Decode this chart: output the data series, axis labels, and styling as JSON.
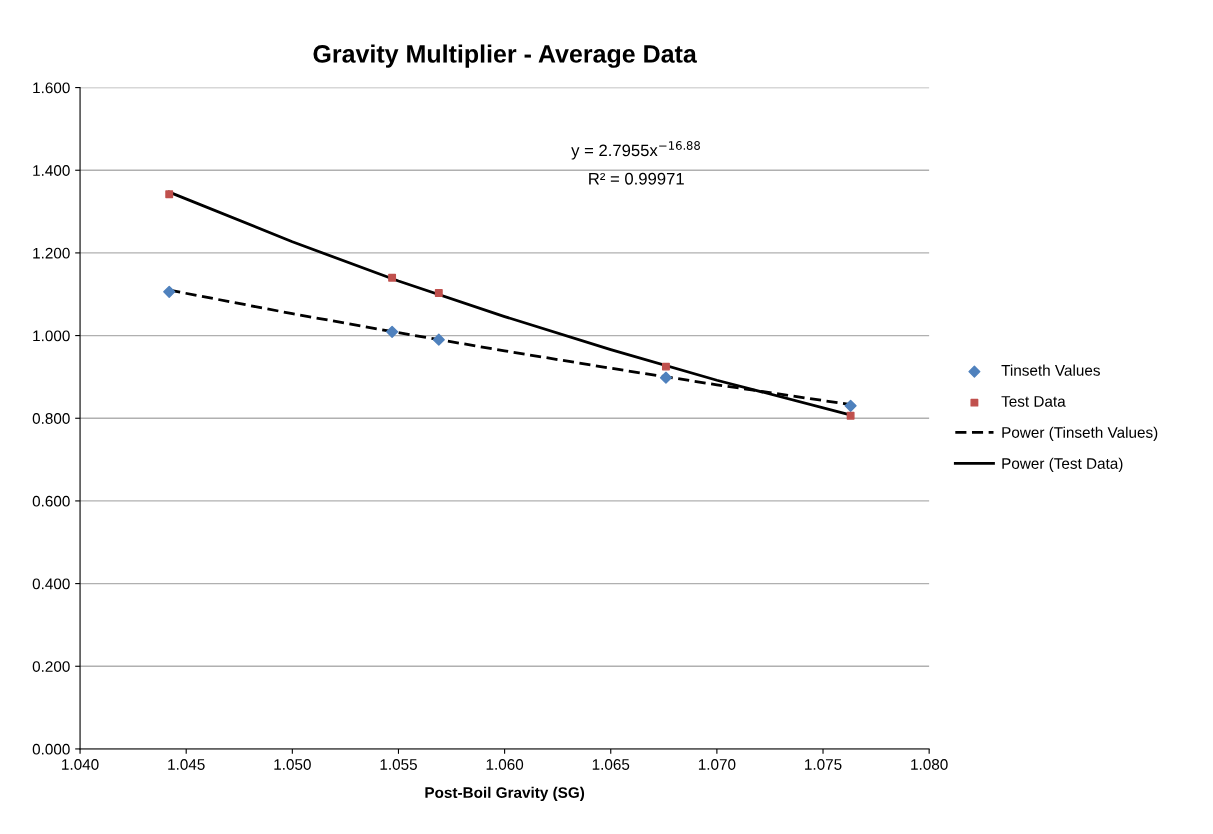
{
  "chart_data": {
    "type": "scatter",
    "title": "Gravity Multiplier - Average Data",
    "xlabel": "Post-Boil Gravity (SG)",
    "xlim": [
      1.04,
      1.08
    ],
    "xticks": [
      {
        "value": 1.04,
        "label": "1.040"
      },
      {
        "value": 1.045,
        "label": "1.045"
      },
      {
        "value": 1.05,
        "label": "1.050"
      },
      {
        "value": 1.055,
        "label": "1.055"
      },
      {
        "value": 1.06,
        "label": "1.060"
      },
      {
        "value": 1.065,
        "label": "1.065"
      },
      {
        "value": 1.07,
        "label": "1.070"
      },
      {
        "value": 1.075,
        "label": "1.075"
      },
      {
        "value": 1.08,
        "label": "1.080"
      }
    ],
    "ylim": [
      0,
      1.6
    ],
    "yticks": [
      {
        "value": 0,
        "label": "0.000"
      },
      {
        "value": 0.2,
        "label": "0.200"
      },
      {
        "value": 0.4,
        "label": "0.400"
      },
      {
        "value": 0.6,
        "label": "0.600"
      },
      {
        "value": 0.8,
        "label": "0.800"
      },
      {
        "value": 1.0,
        "label": "1.000"
      },
      {
        "value": 1.2,
        "label": "1.200"
      },
      {
        "value": 1.4,
        "label": "1.400"
      },
      {
        "value": 1.6,
        "label": "1.600"
      }
    ],
    "grid": "y",
    "legend": "right",
    "series": [
      {
        "name": "Tinseth Values",
        "marker": "diamond",
        "color": "#4f81bd",
        "x": [
          1.0442,
          1.0547,
          1.0569,
          1.0676,
          1.0763
        ],
        "values": [
          1.106,
          1.009,
          0.99,
          0.898,
          0.83
        ]
      },
      {
        "name": "Test Data",
        "marker": "square",
        "color": "#c0504d",
        "x": [
          1.0442,
          1.0547,
          1.0569,
          1.0676,
          1.0763
        ],
        "values": [
          1.342,
          1.14,
          1.103,
          0.925,
          0.806
        ]
      },
      {
        "name": "Power (Tinseth Values)",
        "type": "line",
        "marker": "none",
        "line_style": "dashed",
        "color": "#000000",
        "x": [
          1.0442,
          1.05,
          1.055,
          1.06,
          1.065,
          1.07,
          1.0763
        ],
        "values": [
          1.11,
          1.053,
          1.007,
          0.963,
          0.921,
          0.881,
          0.833
        ]
      },
      {
        "name": "Power (Test Data)",
        "type": "line",
        "marker": "none",
        "line_style": "solid",
        "color": "#000000",
        "x": [
          1.0442,
          1.05,
          1.055,
          1.06,
          1.065,
          1.07,
          1.0763
        ],
        "values": [
          1.347,
          1.227,
          1.132,
          1.046,
          0.966,
          0.892,
          0.808
        ]
      }
    ],
    "annotations": [
      "y = 2.7955x$^{−16.88}$",
      "R² = 0.99971"
    ]
  }
}
